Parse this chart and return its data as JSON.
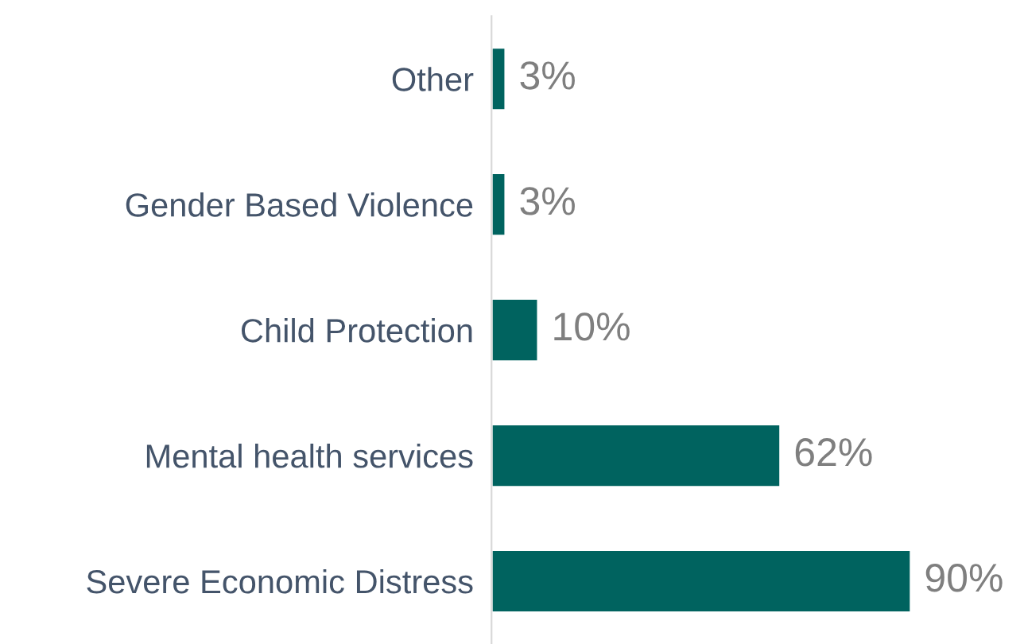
{
  "chart_data": {
    "type": "bar",
    "orientation": "horizontal",
    "categories": [
      "Other",
      "Gender Based Violence",
      "Child Protection",
      "Mental health services",
      "Severe Economic Distress"
    ],
    "values": [
      3,
      3,
      10,
      62,
      90
    ],
    "value_labels": [
      "3%",
      "3%",
      "10%",
      "62%",
      "90%"
    ],
    "color": "#00635f",
    "grid": false,
    "legend": false,
    "tick_labels": "y"
  }
}
